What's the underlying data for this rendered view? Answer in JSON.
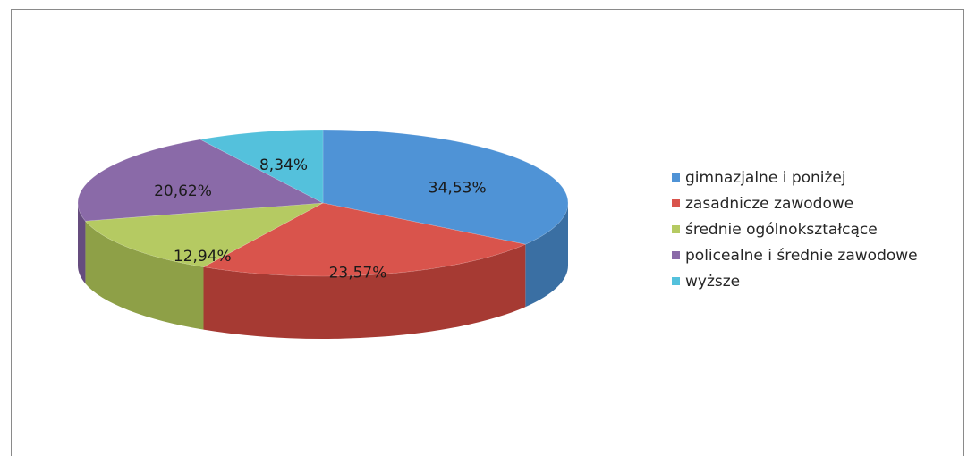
{
  "chart_data": {
    "type": "pie",
    "variant": "3d",
    "slices": [
      {
        "label": "gimnazjalne i poniżej",
        "value": 34.53,
        "display": "34,53%",
        "color": "#4f93d6",
        "side_color": "#3a6fa3"
      },
      {
        "label": "zasadnicze zawodowe",
        "value": 23.57,
        "display": "23,57%",
        "color": "#d9544c",
        "side_color": "#a63a33"
      },
      {
        "label": "średnie ogólnokształcące",
        "value": 12.94,
        "display": "12,94%",
        "color": "#b5ca62",
        "side_color": "#8ea047"
      },
      {
        "label": "policealne i średnie zawodowe",
        "value": 20.62,
        "display": "20,62%",
        "color": "#8a6aa8",
        "side_color": "#654c7e"
      },
      {
        "label": "wyższe",
        "value": 8.34,
        "display": "8,34%",
        "color": "#54c1dc",
        "side_color": "#3a93aa"
      }
    ],
    "legend_position": "right"
  }
}
